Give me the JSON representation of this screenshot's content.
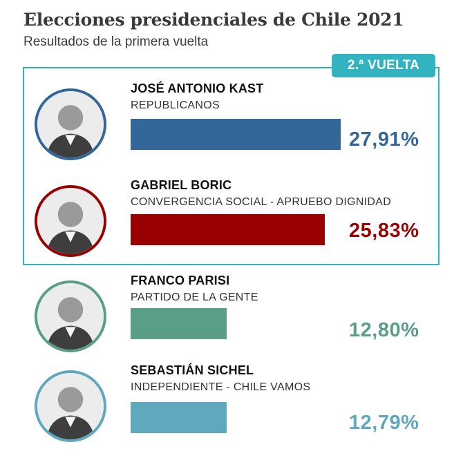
{
  "header": {
    "title": "Elecciones presidenciales de Chile 2021",
    "subtitle": "Resultados de la primera vuelta",
    "badge": "2.ª VUELTA"
  },
  "colors": {
    "accent": "#32b3bf",
    "kast": "#336699",
    "boric": "#990000",
    "parisi": "#5a9e87",
    "sichel": "#5fa8bd"
  },
  "chart_data": {
    "type": "bar",
    "title": "Elecciones presidenciales de Chile 2021",
    "subtitle": "Resultados de la primera vuelta",
    "value_unit": "%",
    "categories": [
      "JOSÉ ANTONIO KAST",
      "GABRIEL BORIC",
      "FRANCO PARISI",
      "SEBASTIÁN SICHEL"
    ],
    "values": [
      27.91,
      25.83,
      12.8,
      12.79
    ],
    "candidates": [
      {
        "name": "JOSÉ ANTONIO KAST",
        "party": "REPUBLICANOS",
        "value": 27.91,
        "label": "27,91%",
        "color": "#336699",
        "avatar_icon": "candidate-photo-icon",
        "second_round": true
      },
      {
        "name": "GABRIEL BORIC",
        "party": "CONVERGENCIA SOCIAL - APRUEBO DIGNIDAD",
        "value": 25.83,
        "label": "25,83%",
        "color": "#990000",
        "avatar_icon": "candidate-photo-icon",
        "second_round": true
      },
      {
        "name": "FRANCO PARISI",
        "party": "PARTIDO DE LA GENTE",
        "value": 12.8,
        "label": "12,80%",
        "color": "#5a9e87",
        "avatar_icon": "candidate-photo-icon",
        "second_round": false
      },
      {
        "name": "SEBASTIÁN SICHEL",
        "party": "INDEPENDIENTE - CHILE VAMOS",
        "value": 12.79,
        "label": "12,79%",
        "color": "#5fa8bd",
        "avatar_icon": "candidate-photo-icon",
        "second_round": false
      }
    ]
  }
}
